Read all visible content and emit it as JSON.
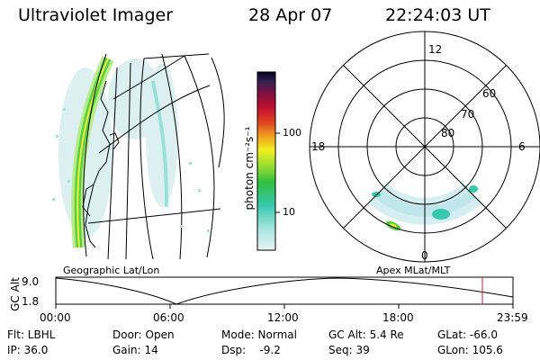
{
  "header": {
    "instrument": "Ultraviolet Imager",
    "date": "28 Apr 07",
    "time": "22:24:03 UT"
  },
  "colorbar": {
    "unit_label": "photon cm⁻²s⁻¹",
    "ticks": [
      "100",
      "10"
    ],
    "scale": "log"
  },
  "polar_plot": {
    "mlt_labels": [
      "12",
      "18",
      "6",
      "0"
    ],
    "lat_labels": [
      "60",
      "70",
      "80"
    ]
  },
  "timeline": {
    "y_label": "GC Alt",
    "y_ticks": [
      "9.0",
      "1.8"
    ],
    "left_title": "Geographic Lat/Lon",
    "right_title": "Apex MLat/MLT",
    "x_ticks": [
      "00:00",
      "06:00",
      "12:00",
      "18:00",
      "23:59"
    ]
  },
  "footer": {
    "flt": "Flt: LBHL",
    "ip": "IP: 36.0",
    "door": "Door: Open",
    "gain": "Gain: 14",
    "mode": "Mode: Normal",
    "dsp": "Dsp:    -9.2",
    "gcalt": "GC Alt: 5.4 Re",
    "seq": "Seq: 39",
    "glat": "GLat: -66.0",
    "glon": "GLon: 105.6"
  },
  "colors": {
    "marker": "#c81e3c",
    "aurora_bright": "#3ec02a",
    "aurora_mid": "#9ef060",
    "aurora_faint": "#c8ecec"
  }
}
